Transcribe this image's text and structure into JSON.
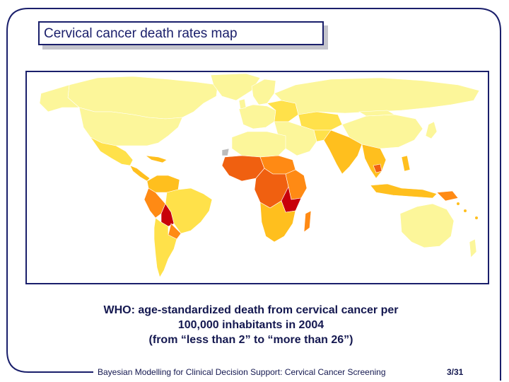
{
  "slide": {
    "title": "Cervical cancer death rates map",
    "caption_lines": [
      "WHO: age-standardized death from cervical cancer per",
      "100,000 inhabitants in 2004",
      "(from “less than 2” to “more than 26”)"
    ],
    "footer": "Bayesian Modelling for Clinical Decision Support: Cervical Cancer Screening",
    "page_number": "3/31"
  },
  "colors": {
    "frame": "#1a1f6b",
    "title_shadow": "#c4c4cc",
    "scale_low": "#fcf69a",
    "scale_mid_low": "#ffe14a",
    "scale_mid": "#ffbf1e",
    "scale_high": "#ff8a14",
    "scale_very_high": "#f06010",
    "scale_top": "#c8000a",
    "no_data": "#bcbcbc"
  }
}
